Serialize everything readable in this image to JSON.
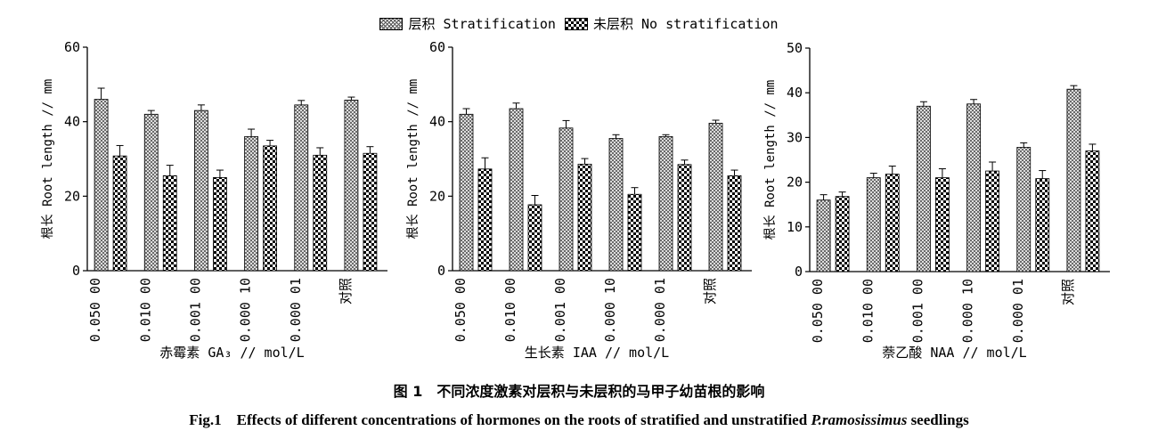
{
  "figure": {
    "legend": [
      {
        "label": "层积 Stratification",
        "pattern": "crosshatch"
      },
      {
        "label": "未层积 No stratification",
        "pattern": "checker"
      }
    ],
    "caption_cn": "图 1　不同浓度激素对层积与未层积的马甲子幼苗根的影响",
    "caption_en_pre": "Fig.1　Effects of different concentrations of hormones on the roots of stratified and unstratified ",
    "caption_en_species": "P.ramosissimus",
    "caption_en_post": " seedlings",
    "colors": {
      "stratified_fill": "#d8d8d8",
      "no_strat_fill": "#000000",
      "axis": "#000000"
    }
  },
  "chart_data": [
    {
      "type": "bar",
      "xlabel": "赤霉素 GA₃ // mol/L",
      "ylabel": "根长 Root length // mm",
      "ylim": [
        0,
        60
      ],
      "yticks": [
        0,
        20,
        40,
        60
      ],
      "categories": [
        "0.050 00",
        "0.010 00",
        "0.001 00",
        "0.000 10",
        "0.000 01",
        "对照"
      ],
      "series": [
        {
          "name": "层积 Stratification",
          "values": [
            46,
            42,
            43,
            36,
            44.5,
            45.8
          ],
          "errors": [
            3,
            1,
            1.5,
            2,
            1.2,
            0.8
          ]
        },
        {
          "name": "未层积 No stratification",
          "values": [
            30.8,
            25.5,
            25,
            33.5,
            31,
            31.5
          ],
          "errors": [
            2.8,
            2.8,
            2,
            1.5,
            2,
            1.8
          ]
        }
      ]
    },
    {
      "type": "bar",
      "xlabel": "生长素 IAA // mol/L",
      "ylabel": "根长 Root length // mm",
      "ylim": [
        0,
        60
      ],
      "yticks": [
        0,
        20,
        40,
        60
      ],
      "categories": [
        "0.050 00",
        "0.010 00",
        "0.001 00",
        "0.000 10",
        "0.000 01",
        "对照"
      ],
      "series": [
        {
          "name": "层积 Stratification",
          "values": [
            42,
            43.5,
            38.3,
            35.5,
            36,
            39.6
          ],
          "errors": [
            1.5,
            1.5,
            2,
            1,
            0.5,
            0.8
          ]
        },
        {
          "name": "未层积 No stratification",
          "values": [
            27.3,
            17.7,
            28.6,
            20.5,
            28.5,
            25.5
          ],
          "errors": [
            3,
            2.5,
            1.5,
            1.8,
            1.2,
            1.5
          ]
        }
      ]
    },
    {
      "type": "bar",
      "xlabel": "萘乙酸 NAA // mol/L",
      "ylabel": "根长 Root length // mm",
      "ylim": [
        0,
        50
      ],
      "yticks": [
        0,
        10,
        20,
        30,
        40,
        50
      ],
      "categories": [
        "0.050 00",
        "0.010 00",
        "0.001 00",
        "0.000 10",
        "0.000 01",
        "对照"
      ],
      "series": [
        {
          "name": "层积 Stratification",
          "values": [
            16,
            21,
            37,
            37.5,
            27.8,
            40.8
          ],
          "errors": [
            1.2,
            1,
            1,
            1,
            1,
            0.8
          ]
        },
        {
          "name": "未层积 No stratification",
          "values": [
            16.8,
            21.8,
            21,
            22.5,
            20.8,
            27
          ],
          "errors": [
            1,
            1.8,
            2,
            2,
            1.8,
            1.5
          ]
        }
      ]
    }
  ]
}
